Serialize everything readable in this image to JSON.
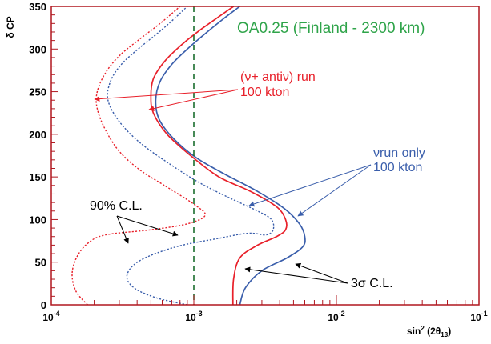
{
  "chart_data": {
    "type": "line",
    "title": "OA0.25 (Finland - 2300 km)",
    "xlabel": "sin² (2θ₁₃)",
    "ylabel": "δ CP",
    "xscale": "log",
    "xlim": [
      0.0001,
      0.1
    ],
    "ylim": [
      0,
      350
    ],
    "x_ticks": [
      {
        "value": 0.0001,
        "base": "10",
        "exp": "-4"
      },
      {
        "value": 0.001,
        "base": "10",
        "exp": "-3"
      },
      {
        "value": 0.01,
        "base": "10",
        "exp": "-2"
      },
      {
        "value": 0.1,
        "base": "10",
        "exp": "-1"
      }
    ],
    "y_ticks": [
      0,
      50,
      100,
      150,
      200,
      250,
      300,
      350
    ],
    "reference_line": {
      "x": 0.001,
      "style": "dashed",
      "color": "#1a6e2e"
    },
    "colors": {
      "nu_antinu": "#e8202a",
      "nu_only": "#3a5eab",
      "title": "#2fa44a",
      "axis": "#b0171f"
    },
    "series": [
      {
        "key": "red_3sigma",
        "color": "#e8202a",
        "dash": "solid",
        "points": [
          [
            0.00188,
            0
          ],
          [
            0.0019,
            30
          ],
          [
            0.0021,
            55
          ],
          [
            0.0028,
            70
          ],
          [
            0.0038,
            80
          ],
          [
            0.0044,
            88
          ],
          [
            0.0044,
            100
          ],
          [
            0.0038,
            115
          ],
          [
            0.0025,
            133
          ],
          [
            0.0015,
            150
          ],
          [
            0.00095,
            175
          ],
          [
            0.00065,
            200
          ],
          [
            0.00052,
            225
          ],
          [
            0.0005,
            245
          ],
          [
            0.00052,
            265
          ],
          [
            0.00062,
            285
          ],
          [
            0.00082,
            305
          ],
          [
            0.0011,
            322
          ],
          [
            0.0015,
            338
          ],
          [
            0.0019,
            350
          ]
        ]
      },
      {
        "key": "blue_3sigma",
        "color": "#3a5eab",
        "dash": "solid",
        "points": [
          [
            0.0021,
            0
          ],
          [
            0.0023,
            20
          ],
          [
            0.003,
            40
          ],
          [
            0.0045,
            55
          ],
          [
            0.0058,
            68
          ],
          [
            0.006,
            80
          ],
          [
            0.0055,
            95
          ],
          [
            0.0043,
            113
          ],
          [
            0.0028,
            133
          ],
          [
            0.0017,
            152
          ],
          [
            0.00105,
            172
          ],
          [
            0.00072,
            195
          ],
          [
            0.00057,
            218
          ],
          [
            0.00054,
            240
          ],
          [
            0.00058,
            262
          ],
          [
            0.0007,
            282
          ],
          [
            0.0009,
            300
          ],
          [
            0.0012,
            318
          ],
          [
            0.0016,
            335
          ],
          [
            0.0021,
            350
          ]
        ]
      },
      {
        "key": "red_90cl",
        "color": "#e8202a",
        "dash": "dotted",
        "points": [
          [
            0.00018,
            0
          ],
          [
            0.00015,
            15
          ],
          [
            0.00014,
            35
          ],
          [
            0.00015,
            55
          ],
          [
            0.00018,
            72
          ],
          [
            0.00024,
            82
          ],
          [
            0.0005,
            88
          ],
          [
            0.0009,
            95
          ],
          [
            0.0012,
            105
          ],
          [
            0.001,
            118
          ],
          [
            0.00065,
            138
          ],
          [
            0.00042,
            158
          ],
          [
            0.0003,
            180
          ],
          [
            0.00024,
            205
          ],
          [
            0.00021,
            230
          ],
          [
            0.00021,
            250
          ],
          [
            0.00024,
            272
          ],
          [
            0.0003,
            292
          ],
          [
            0.00042,
            312
          ],
          [
            0.00058,
            330
          ],
          [
            0.0008,
            350
          ]
        ]
      },
      {
        "key": "blue_90cl",
        "color": "#3a5eab",
        "dash": "dotted",
        "points": [
          [
            0.0009,
            0
          ],
          [
            0.00055,
            8
          ],
          [
            0.00038,
            20
          ],
          [
            0.00034,
            35
          ],
          [
            0.00042,
            52
          ],
          [
            0.00075,
            68
          ],
          [
            0.0015,
            78
          ],
          [
            0.0024,
            84
          ],
          [
            0.0032,
            82
          ],
          [
            0.0036,
            88
          ],
          [
            0.0035,
            100
          ],
          [
            0.0028,
            110
          ],
          [
            0.0018,
            125
          ],
          [
            0.0011,
            143
          ],
          [
            0.00068,
            165
          ],
          [
            0.00042,
            190
          ],
          [
            0.0003,
            215
          ],
          [
            0.00025,
            240
          ],
          [
            0.00026,
            262
          ],
          [
            0.00031,
            282
          ],
          [
            0.00042,
            302
          ],
          [
            0.00062,
            325
          ],
          [
            0.0009,
            350
          ]
        ]
      }
    ],
    "annotations": {
      "nu_antinu_run": "(ν+ antiν) run",
      "nu_antinu_kton": "100 kton",
      "nu_only_run": "νrun only",
      "nu_only_kton": "100 kton",
      "cl90": "90% C.L.",
      "cl3sigma": "3σ C.L."
    }
  }
}
